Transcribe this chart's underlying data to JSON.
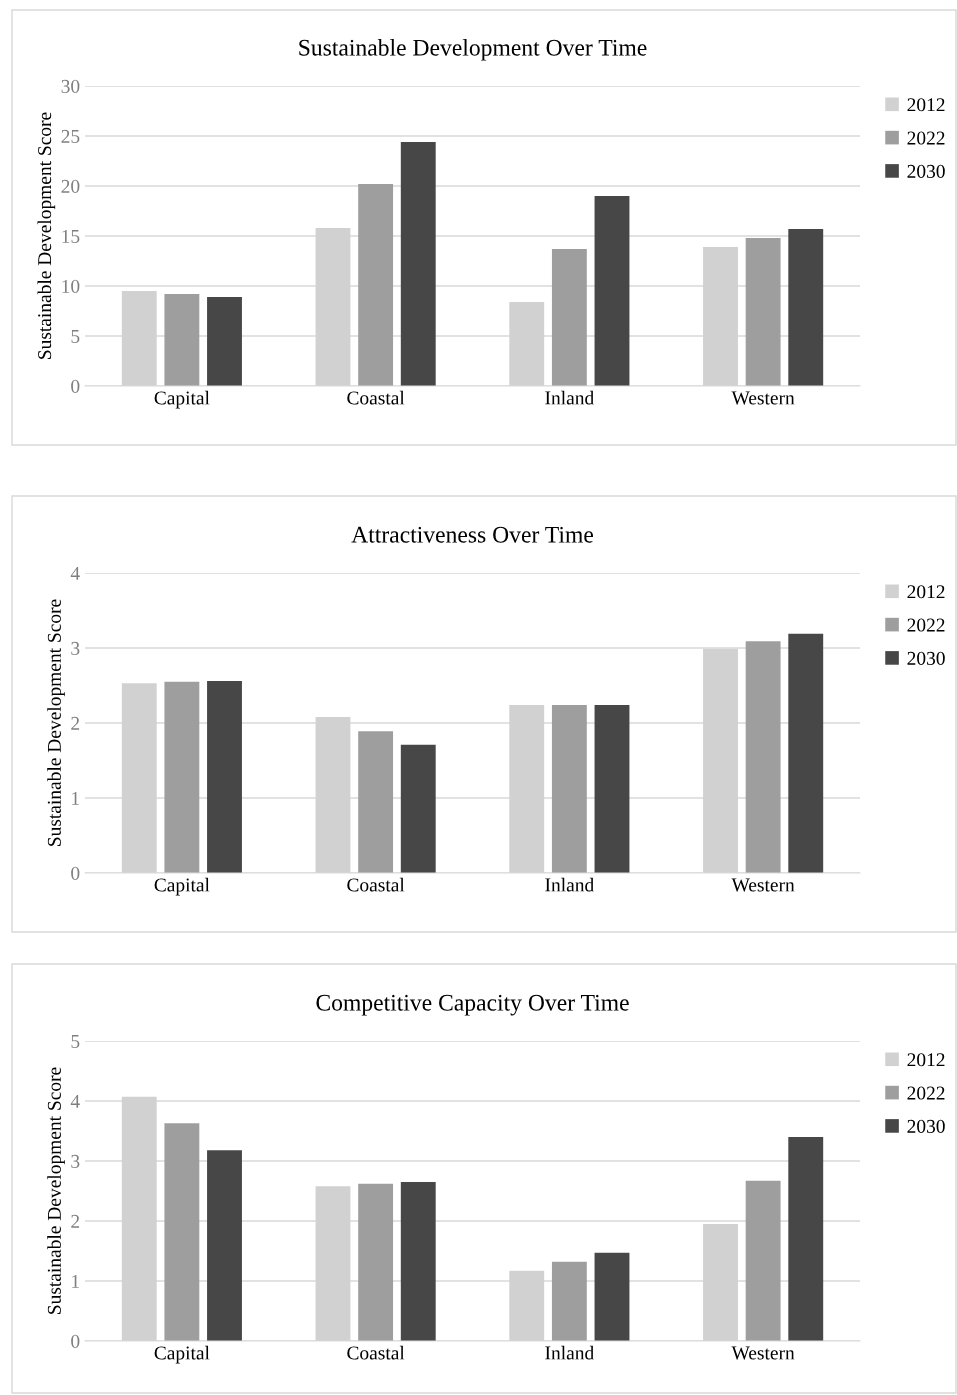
{
  "chart_data": [
    {
      "type": "bar",
      "title": "Sustainable Development Over Time",
      "ylabel": "Sustainable Development Score",
      "categories": [
        "Capital",
        "Coastal",
        "Inland",
        "Western"
      ],
      "series": [
        {
          "name": "2012",
          "color": "#d1d1d1",
          "values": [
            9.5,
            15.8,
            8.4,
            13.9
          ]
        },
        {
          "name": "2022",
          "color": "#9e9e9e",
          "values": [
            9.2,
            20.2,
            13.7,
            14.8
          ]
        },
        {
          "name": "2030",
          "color": "#474747",
          "values": [
            8.9,
            24.4,
            19.0,
            15.7
          ]
        }
      ],
      "ylim": [
        0,
        30
      ],
      "yticks": [
        0,
        5,
        10,
        15,
        20,
        25,
        30
      ],
      "grid": "y",
      "legend": "top right"
    },
    {
      "type": "bar",
      "title": "Attractiveness Over Time",
      "ylabel": "Sustainable Development Score",
      "categories": [
        "Capital",
        "Coastal",
        "Inland",
        "Western"
      ],
      "series": [
        {
          "name": "2012",
          "color": "#d1d1d1",
          "values": [
            2.53,
            2.08,
            2.24,
            2.99
          ]
        },
        {
          "name": "2022",
          "color": "#9e9e9e",
          "values": [
            2.55,
            1.89,
            2.24,
            3.09
          ]
        },
        {
          "name": "2030",
          "color": "#474747",
          "values": [
            2.56,
            1.71,
            2.24,
            3.19
          ]
        }
      ],
      "ylim": [
        0,
        4
      ],
      "yticks": [
        0,
        1,
        2,
        3,
        4
      ],
      "grid": "y",
      "legend": "top right"
    },
    {
      "type": "bar",
      "title": "Competitive Capacity Over Time",
      "ylabel": "Sustainable Development Score",
      "categories": [
        "Capital",
        "Coastal",
        "Inland",
        "Western"
      ],
      "series": [
        {
          "name": "2012",
          "color": "#d1d1d1",
          "values": [
            4.07,
            2.58,
            1.17,
            1.95
          ]
        },
        {
          "name": "2022",
          "color": "#9e9e9e",
          "values": [
            3.63,
            2.62,
            1.32,
            2.67
          ]
        },
        {
          "name": "2030",
          "color": "#474747",
          "values": [
            3.18,
            2.65,
            1.47,
            3.4
          ]
        }
      ],
      "ylim": [
        0,
        5
      ],
      "yticks": [
        0,
        1,
        2,
        3,
        4,
        5
      ],
      "grid": "y",
      "legend": "top right"
    }
  ]
}
